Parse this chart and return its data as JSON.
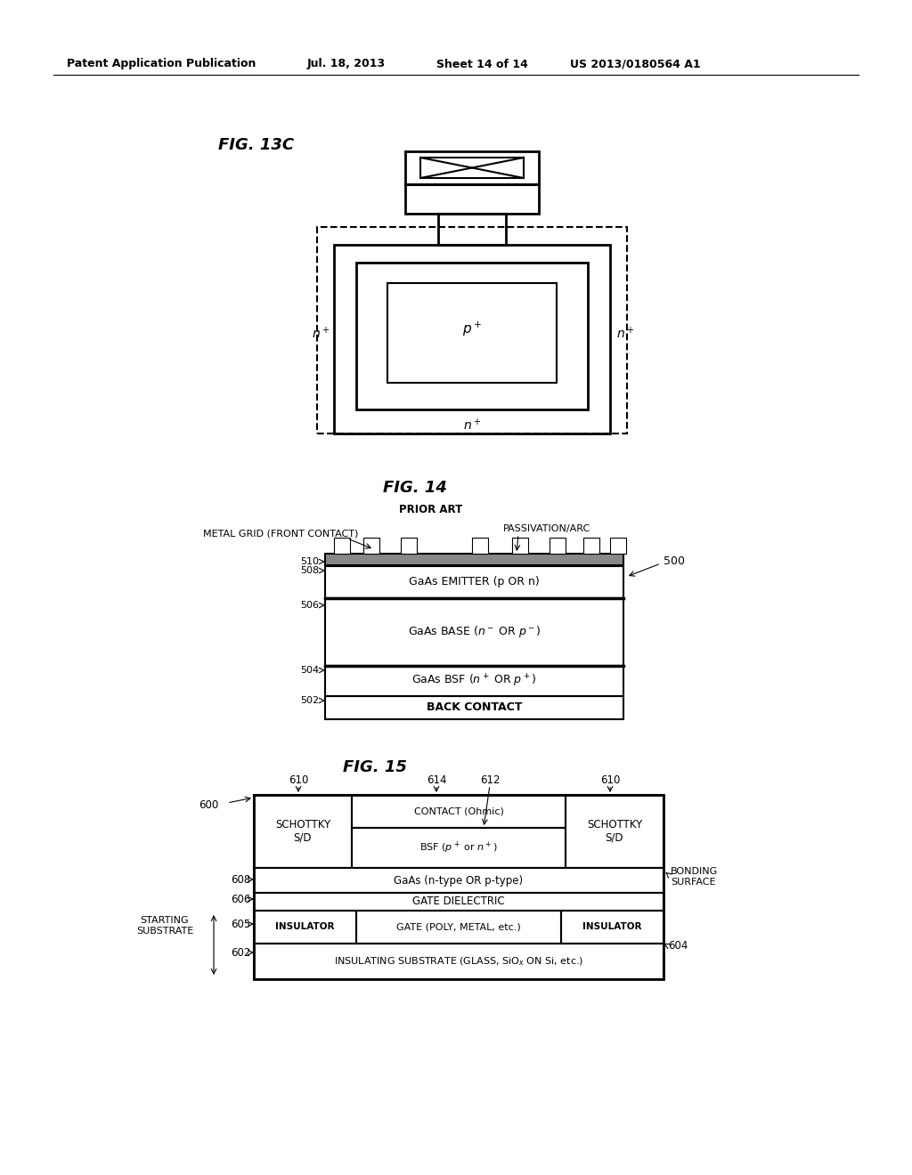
{
  "bg_color": "#ffffff",
  "header_text": "Patent Application Publication",
  "header_date": "Jul. 18, 2013",
  "header_sheet": "Sheet 14 of 14",
  "header_patent": "US 2013/0180564 A1",
  "fig13c_title": "FIG. 13C",
  "fig14_title": "FIG. 14",
  "fig14_subtitle": "PRIOR ART",
  "fig15_title": "FIG. 15"
}
